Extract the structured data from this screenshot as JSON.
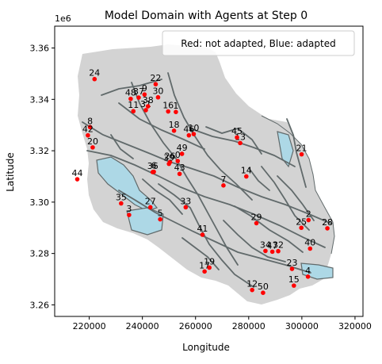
{
  "chart_data": {
    "type": "scatter",
    "title": "Model Domain with Agents at Step 0",
    "xlabel": "Longitude",
    "ylabel": "Latitude",
    "y_offset_label": "1e6",
    "xlim": [
      207000,
      323000
    ],
    "ylim": [
      3255500,
      3368500
    ],
    "x_ticks": [
      220000,
      240000,
      260000,
      280000,
      300000,
      320000
    ],
    "x_tick_labels": [
      "220000",
      "240000",
      "260000",
      "280000",
      "300000",
      "320000"
    ],
    "y_ticks": [
      3260000,
      3280000,
      3300000,
      3320000,
      3340000,
      3360000
    ],
    "y_tick_labels": [
      "3.26",
      "3.28",
      "3.30",
      "3.32",
      "3.34",
      "3.36"
    ],
    "legend_text": "Red: not adapted, Blue: adapted",
    "legend_position": "top-right",
    "grid": false,
    "colors": {
      "not_adapted": "#ff0000",
      "adapted": "#0000ff",
      "domain_fill": "#d3d3d3",
      "water_fill": "#add8e6",
      "river_stroke": "#616a6b"
    },
    "agents": [
      {
        "id": "0",
        "x": 253300,
        "y": 3316000,
        "adapted": false
      },
      {
        "id": "1",
        "x": 252600,
        "y": 3335100,
        "adapted": false
      },
      {
        "id": "2",
        "x": 302500,
        "y": 3293000,
        "adapted": false
      },
      {
        "id": "3",
        "x": 235000,
        "y": 3295000,
        "adapted": false
      },
      {
        "id": "4",
        "x": 302300,
        "y": 3271000,
        "adapted": false
      },
      {
        "id": "5",
        "x": 246700,
        "y": 3293300,
        "adapted": false
      },
      {
        "id": "6",
        "x": 244300,
        "y": 3311800,
        "adapted": false
      },
      {
        "id": "7",
        "x": 270500,
        "y": 3306500,
        "adapted": false
      },
      {
        "id": "8",
        "x": 220300,
        "y": 3329200,
        "adapted": false
      },
      {
        "id": "9",
        "x": 240800,
        "y": 3341900,
        "adapted": false
      },
      {
        "id": "10",
        "x": 259300,
        "y": 3326500,
        "adapted": false
      },
      {
        "id": "11",
        "x": 236600,
        "y": 3335400,
        "adapted": false
      },
      {
        "id": "12",
        "x": 281300,
        "y": 3265800,
        "adapted": false
      },
      {
        "id": "13",
        "x": 276800,
        "y": 3323000,
        "adapted": false
      },
      {
        "id": "14",
        "x": 279100,
        "y": 3310000,
        "adapted": false
      },
      {
        "id": "15",
        "x": 297000,
        "y": 3267500,
        "adapted": false
      },
      {
        "id": "16",
        "x": 249700,
        "y": 3335300,
        "adapted": false
      },
      {
        "id": "17",
        "x": 263400,
        "y": 3273000,
        "adapted": false
      },
      {
        "id": "18",
        "x": 251900,
        "y": 3327800,
        "adapted": false
      },
      {
        "id": "19",
        "x": 265200,
        "y": 3274500,
        "adapted": false
      },
      {
        "id": "20",
        "x": 221300,
        "y": 3321300,
        "adapted": false
      },
      {
        "id": "21",
        "x": 299900,
        "y": 3318600,
        "adapted": false
      },
      {
        "id": "22",
        "x": 245000,
        "y": 3345900,
        "adapted": false
      },
      {
        "id": "23",
        "x": 296300,
        "y": 3274000,
        "adapted": false
      },
      {
        "id": "24",
        "x": 222000,
        "y": 3347900,
        "adapted": false
      },
      {
        "id": "25",
        "x": 299800,
        "y": 3290000,
        "adapted": false
      },
      {
        "id": "26",
        "x": 250400,
        "y": 3315600,
        "adapted": false
      },
      {
        "id": "27",
        "x": 243000,
        "y": 3298000,
        "adapted": false
      },
      {
        "id": "28",
        "x": 309600,
        "y": 3289800,
        "adapted": false
      },
      {
        "id": "29",
        "x": 282900,
        "y": 3291800,
        "adapted": false
      },
      {
        "id": "30",
        "x": 245900,
        "y": 3340800,
        "adapted": false
      },
      {
        "id": "31",
        "x": 241300,
        "y": 3335800,
        "adapted": false
      },
      {
        "id": "32",
        "x": 291100,
        "y": 3280900,
        "adapted": false
      },
      {
        "id": "33",
        "x": 256300,
        "y": 3298000,
        "adapted": false
      },
      {
        "id": "34",
        "x": 286300,
        "y": 3281000,
        "adapted": false
      },
      {
        "id": "35",
        "x": 232000,
        "y": 3299500,
        "adapted": false
      },
      {
        "id": "36",
        "x": 243900,
        "y": 3311700,
        "adapted": false
      },
      {
        "id": "37",
        "x": 238600,
        "y": 3340700,
        "adapted": false
      },
      {
        "id": "38",
        "x": 242100,
        "y": 3337300,
        "adapted": false
      },
      {
        "id": "39",
        "x": 250000,
        "y": 3314900,
        "adapted": false
      },
      {
        "id": "40",
        "x": 303100,
        "y": 3281900,
        "adapted": false
      },
      {
        "id": "41",
        "x": 262600,
        "y": 3287300,
        "adapted": false
      },
      {
        "id": "42",
        "x": 219500,
        "y": 3326000,
        "adapted": false
      },
      {
        "id": "43",
        "x": 254000,
        "y": 3311000,
        "adapted": false
      },
      {
        "id": "44",
        "x": 215500,
        "y": 3308900,
        "adapted": false
      },
      {
        "id": "45",
        "x": 275600,
        "y": 3325200,
        "adapted": false
      },
      {
        "id": "46",
        "x": 257500,
        "y": 3326000,
        "adapted": false
      },
      {
        "id": "47",
        "x": 288900,
        "y": 3280700,
        "adapted": false
      },
      {
        "id": "48",
        "x": 235600,
        "y": 3340200,
        "adapted": false
      },
      {
        "id": "49",
        "x": 254900,
        "y": 3318800,
        "adapted": false
      },
      {
        "id": "50",
        "x": 285400,
        "y": 3264700,
        "adapted": false
      }
    ]
  }
}
